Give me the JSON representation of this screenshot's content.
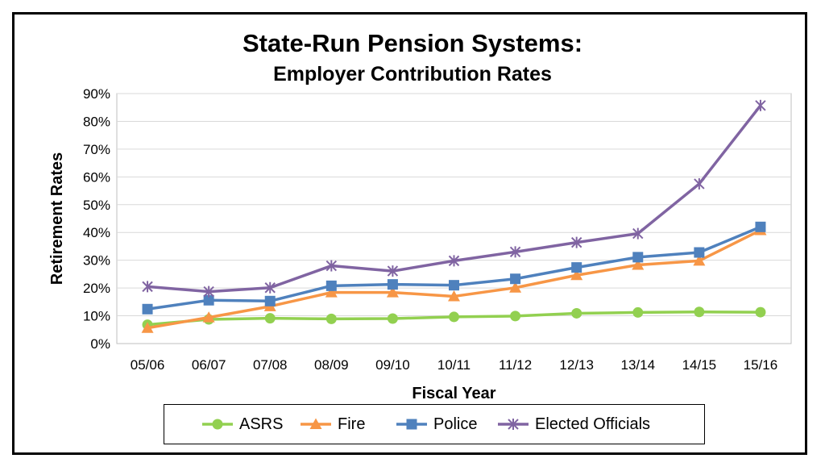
{
  "chart_data": {
    "type": "line",
    "title": "State-Run Pension Systems:",
    "subtitle": "Employer Contribution Rates",
    "xlabel": "Fiscal Year",
    "ylabel": "Retirement Rates",
    "categories": [
      "05/06",
      "06/07",
      "07/08",
      "08/09",
      "09/10",
      "10/11",
      "11/12",
      "12/13",
      "13/14",
      "14/15",
      "15/16"
    ],
    "ylim": [
      0,
      90
    ],
    "ytick_labels": [
      "0%",
      "10%",
      "20%",
      "30%",
      "40%",
      "50%",
      "60%",
      "70%",
      "80%",
      "90%"
    ],
    "grid": "horizontal",
    "legend_position": "bottom",
    "series": [
      {
        "name": "ASRS",
        "color": "#92d050",
        "marker": "circle",
        "values": [
          6.8,
          8.7,
          9.1,
          8.9,
          9.0,
          9.6,
          9.9,
          10.9,
          11.2,
          11.4,
          11.3
        ]
      },
      {
        "name": "Fire",
        "color": "#f79646",
        "marker": "triangle",
        "values": [
          5.6,
          9.4,
          13.4,
          18.4,
          18.4,
          17.0,
          20.1,
          24.6,
          28.3,
          29.8,
          40.8
        ]
      },
      {
        "name": "Police",
        "color": "#4f81bd",
        "marker": "square",
        "values": [
          12.4,
          15.6,
          15.3,
          20.8,
          21.3,
          21.0,
          23.3,
          27.4,
          31.1,
          32.8,
          42.0
        ]
      },
      {
        "name": "Elected Officials",
        "color": "#8064a2",
        "marker": "star",
        "values": [
          20.5,
          18.7,
          20.1,
          28.0,
          26.1,
          29.8,
          33.0,
          36.4,
          39.6,
          57.5,
          85.7
        ]
      }
    ]
  }
}
